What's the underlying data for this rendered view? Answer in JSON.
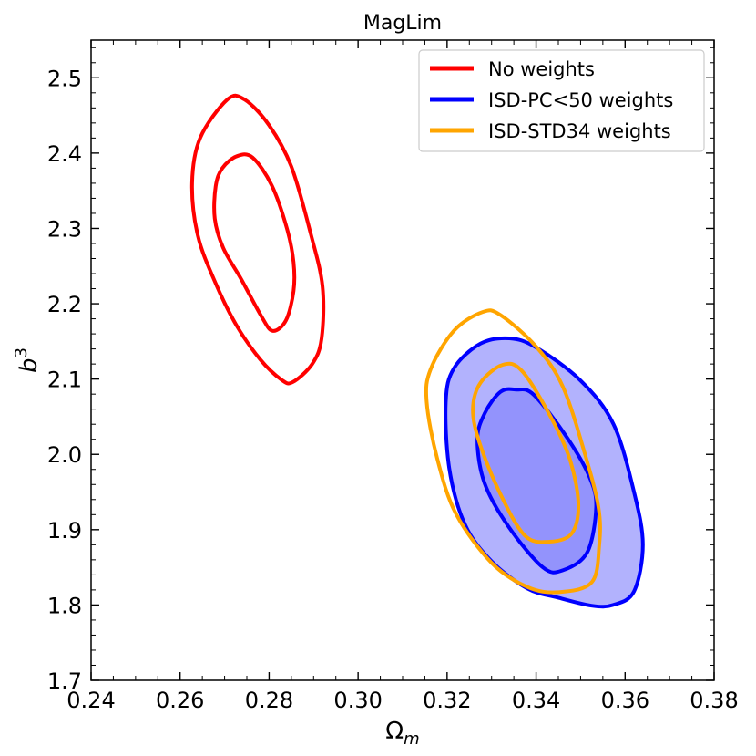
{
  "chart_data": {
    "type": "contour",
    "title": "MagLim",
    "xlabel": "Ω",
    "xlabel_sub": "m",
    "ylabel": "b",
    "ylabel_sup": "3",
    "xlim": [
      0.24,
      0.38
    ],
    "ylim": [
      1.7,
      2.55
    ],
    "xticks": [
      0.24,
      0.26,
      0.28,
      0.3,
      0.32,
      0.34,
      0.36,
      0.38
    ],
    "xtick_labels": [
      "0.24",
      "0.26",
      "0.28",
      "0.30",
      "0.32",
      "0.34",
      "0.36",
      "0.38"
    ],
    "yticks": [
      1.7,
      1.8,
      1.9,
      2.0,
      2.1,
      2.2,
      2.3,
      2.4,
      2.5
    ],
    "ytick_labels": [
      "1.7",
      "1.8",
      "1.9",
      "2.0",
      "2.1",
      "2.2",
      "2.3",
      "2.4",
      "2.5"
    ],
    "legend_position": "top-right",
    "series": [
      {
        "name": "No weights",
        "color": "#ff0000",
        "filled": false,
        "contours": [
          {
            "level": "68%",
            "points": [
              [
                0.2728,
                2.396
              ],
              [
                0.2763,
                2.394
              ],
              [
                0.2806,
                2.357
              ],
              [
                0.284,
                2.3
              ],
              [
                0.2855,
                2.255
              ],
              [
                0.2855,
                2.217
              ],
              [
                0.2838,
                2.178
              ],
              [
                0.2808,
                2.164
              ],
              [
                0.2783,
                2.183
              ],
              [
                0.2738,
                2.232
              ],
              [
                0.2697,
                2.274
              ],
              [
                0.2678,
                2.313
              ],
              [
                0.268,
                2.356
              ],
              [
                0.2695,
                2.38
              ]
            ]
          },
          {
            "level": "95%",
            "points": [
              [
                0.2706,
                2.471
              ],
              [
                0.2745,
                2.471
              ],
              [
                0.28,
                2.437
              ],
              [
                0.285,
                2.382
              ],
              [
                0.2893,
                2.294
              ],
              [
                0.292,
                2.223
              ],
              [
                0.2918,
                2.154
              ],
              [
                0.2897,
                2.12
              ],
              [
                0.2853,
                2.096
              ],
              [
                0.2828,
                2.099
              ],
              [
                0.278,
                2.126
              ],
              [
                0.2726,
                2.172
              ],
              [
                0.268,
                2.227
              ],
              [
                0.264,
                2.29
              ],
              [
                0.2627,
                2.36
              ],
              [
                0.2645,
                2.42
              ]
            ]
          }
        ]
      },
      {
        "name": "ISD-PC<50 weights",
        "color": "#0000ff",
        "fill": "#7f7ffb",
        "filled": true,
        "contours": [
          {
            "level": "95%",
            "points": [
              [
                0.334,
                2.154
              ],
              [
                0.34,
                2.142
              ],
              [
                0.35,
                2.098
              ],
              [
                0.3574,
                2.04
              ],
              [
                0.362,
                1.95
              ],
              [
                0.364,
                1.88
              ],
              [
                0.362,
                1.818
              ],
              [
                0.3573,
                1.8
              ],
              [
                0.3525,
                1.799
              ],
              [
                0.3448,
                1.81
              ],
              [
                0.338,
                1.822
              ],
              [
                0.33,
                1.858
              ],
              [
                0.324,
                1.907
              ],
              [
                0.3205,
                1.981
              ],
              [
                0.3197,
                2.069
              ],
              [
                0.3215,
                2.114
              ],
              [
                0.3275,
                2.147
              ]
            ]
          },
          {
            "level": "68%",
            "points": [
              [
                0.3355,
                2.086
              ],
              [
                0.3395,
                2.079
              ],
              [
                0.347,
                2.022
              ],
              [
                0.352,
                1.97
              ],
              [
                0.3535,
                1.93
              ],
              [
                0.3515,
                1.87
              ],
              [
                0.346,
                1.846
              ],
              [
                0.3415,
                1.85
              ],
              [
                0.3338,
                1.904
              ],
              [
                0.3284,
                1.962
              ],
              [
                0.3268,
                2.02
              ],
              [
                0.3285,
                2.055
              ],
              [
                0.332,
                2.083
              ]
            ]
          }
        ]
      },
      {
        "name": "ISD-STD34 weights",
        "color": "#ffa500",
        "filled": false,
        "contours": [
          {
            "level": "68%",
            "points": [
              [
                0.3325,
                2.119
              ],
              [
                0.3368,
                2.111
              ],
              [
                0.343,
                2.053
              ],
              [
                0.3475,
                1.995
              ],
              [
                0.3495,
                1.935
              ],
              [
                0.348,
                1.895
              ],
              [
                0.343,
                1.884
              ],
              [
                0.3375,
                1.892
              ],
              [
                0.332,
                1.947
              ],
              [
                0.3273,
                2.015
              ],
              [
                0.3258,
                2.06
              ],
              [
                0.3275,
                2.095
              ]
            ]
          },
          {
            "level": "95%",
            "points": [
              [
                0.328,
                2.189
              ],
              [
                0.332,
                2.185
              ],
              [
                0.34,
                2.143
              ],
              [
                0.346,
                2.09
              ],
              [
                0.351,
                2.0
              ],
              [
                0.354,
                1.93
              ],
              [
                0.3542,
                1.88
              ],
              [
                0.3525,
                1.83
              ],
              [
                0.345,
                1.817
              ],
              [
                0.338,
                1.824
              ],
              [
                0.33,
                1.856
              ],
              [
                0.322,
                1.921
              ],
              [
                0.3178,
                1.994
              ],
              [
                0.3154,
                2.07
              ],
              [
                0.3163,
                2.113
              ],
              [
                0.3215,
                2.164
              ]
            ]
          }
        ]
      }
    ]
  }
}
